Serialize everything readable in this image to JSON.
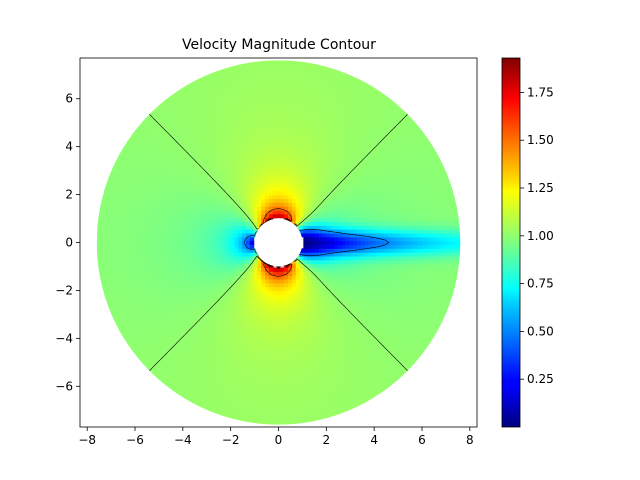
{
  "chart_data": {
    "type": "heatmap",
    "title": "Velocity Magnitude Contour",
    "xlabel": "",
    "ylabel": "",
    "xlim": [
      -8.3,
      8.3
    ],
    "ylim": [
      -7.7,
      7.7
    ],
    "x_ticks": [
      -8,
      -6,
      -4,
      -2,
      0,
      2,
      4,
      6,
      8
    ],
    "y_ticks": [
      -6,
      -4,
      -2,
      0,
      2,
      4,
      6
    ],
    "domain_outer_radius": 7.6,
    "cylinder_radius": 1.0,
    "colormap": "jet",
    "colorbar": {
      "range": [
        0.0,
        1.93
      ],
      "ticks": [
        0.25,
        0.5,
        0.75,
        1.0,
        1.25,
        1.5,
        1.75
      ],
      "tick_labels": [
        "0.25",
        "0.50",
        "0.75",
        "1.00",
        "1.25",
        "1.50",
        "1.75"
      ]
    },
    "contour_levels": [
      0.5,
      1.0,
      1.5
    ],
    "grid": false,
    "legend": "none"
  }
}
